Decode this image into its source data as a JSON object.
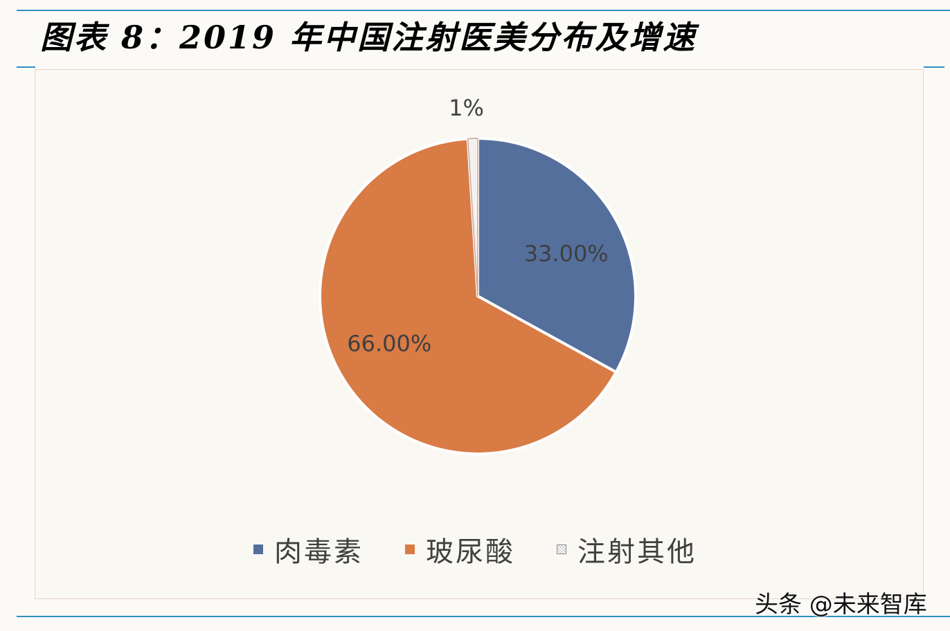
{
  "title": "图表 8：2019 年中国注射医美分布及增速",
  "watermark": "头条 @未来智库",
  "chart_data": {
    "type": "pie",
    "slices": [
      {
        "name": "肉毒素",
        "value": 33.0,
        "label": "33.00%",
        "color": "#556f9c"
      },
      {
        "name": "玻尿酸",
        "value": 66.0,
        "label": "66.00%",
        "color": "#d97b45"
      },
      {
        "name": "注射其他",
        "value": 1.0,
        "label": "1%",
        "color": "#f4f1ee"
      }
    ],
    "legend_position": "bottom"
  }
}
